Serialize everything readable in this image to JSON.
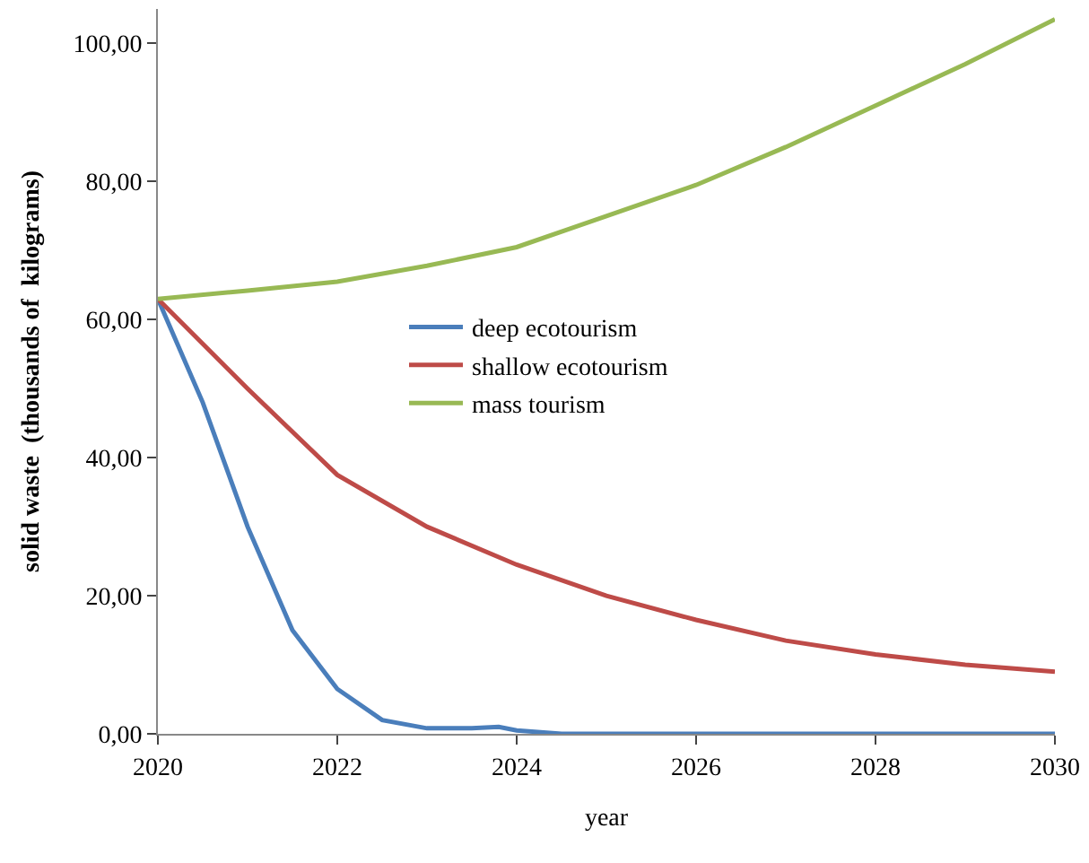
{
  "chart_data": {
    "type": "line",
    "xlabel": "year",
    "ylabel": "solid waste  (thousands of  kilograms)",
    "xlim": [
      2020,
      2030
    ],
    "xticks": [
      2020,
      2022,
      2024,
      2026,
      2028,
      2030
    ],
    "ylim": [
      0,
      105
    ],
    "yticks": [
      {
        "value": 0,
        "label": "0,00"
      },
      {
        "value": 20,
        "label": "20,00"
      },
      {
        "value": 40,
        "label": "40,00"
      },
      {
        "value": 60,
        "label": "60,00"
      },
      {
        "value": 80,
        "label": "80,00"
      },
      {
        "value": 100,
        "label": "100,00"
      }
    ],
    "legend": "center",
    "marker": "none",
    "line_style": "solid",
    "series": [
      {
        "name": "deep ecotourism",
        "color": "#4a7ebb",
        "x": [
          2020,
          2020.5,
          2021,
          2021.5,
          2022,
          2022.5,
          2023,
          2023.5,
          2023.8,
          2024,
          2024.5,
          2025,
          2030
        ],
        "values": [
          63,
          48,
          30,
          15,
          6.5,
          2,
          0.8,
          0.8,
          1,
          0.5,
          0,
          0,
          0
        ]
      },
      {
        "name": "shallow ecotourism",
        "color": "#be4b48",
        "x": [
          2020,
          2021,
          2022,
          2023,
          2024,
          2025,
          2026,
          2027,
          2028,
          2029,
          2030
        ],
        "values": [
          63,
          50,
          37.5,
          30,
          24.5,
          20,
          16.5,
          13.5,
          11.5,
          10,
          9
        ]
      },
      {
        "name": "mass tourism",
        "color": "#98b954",
        "x": [
          2020,
          2021,
          2022,
          2023,
          2024,
          2025,
          2026,
          2027,
          2028,
          2029,
          2030
        ],
        "values": [
          63,
          64.2,
          65.5,
          67.8,
          70.5,
          75,
          79.5,
          85,
          91,
          97,
          103.5
        ]
      }
    ]
  }
}
